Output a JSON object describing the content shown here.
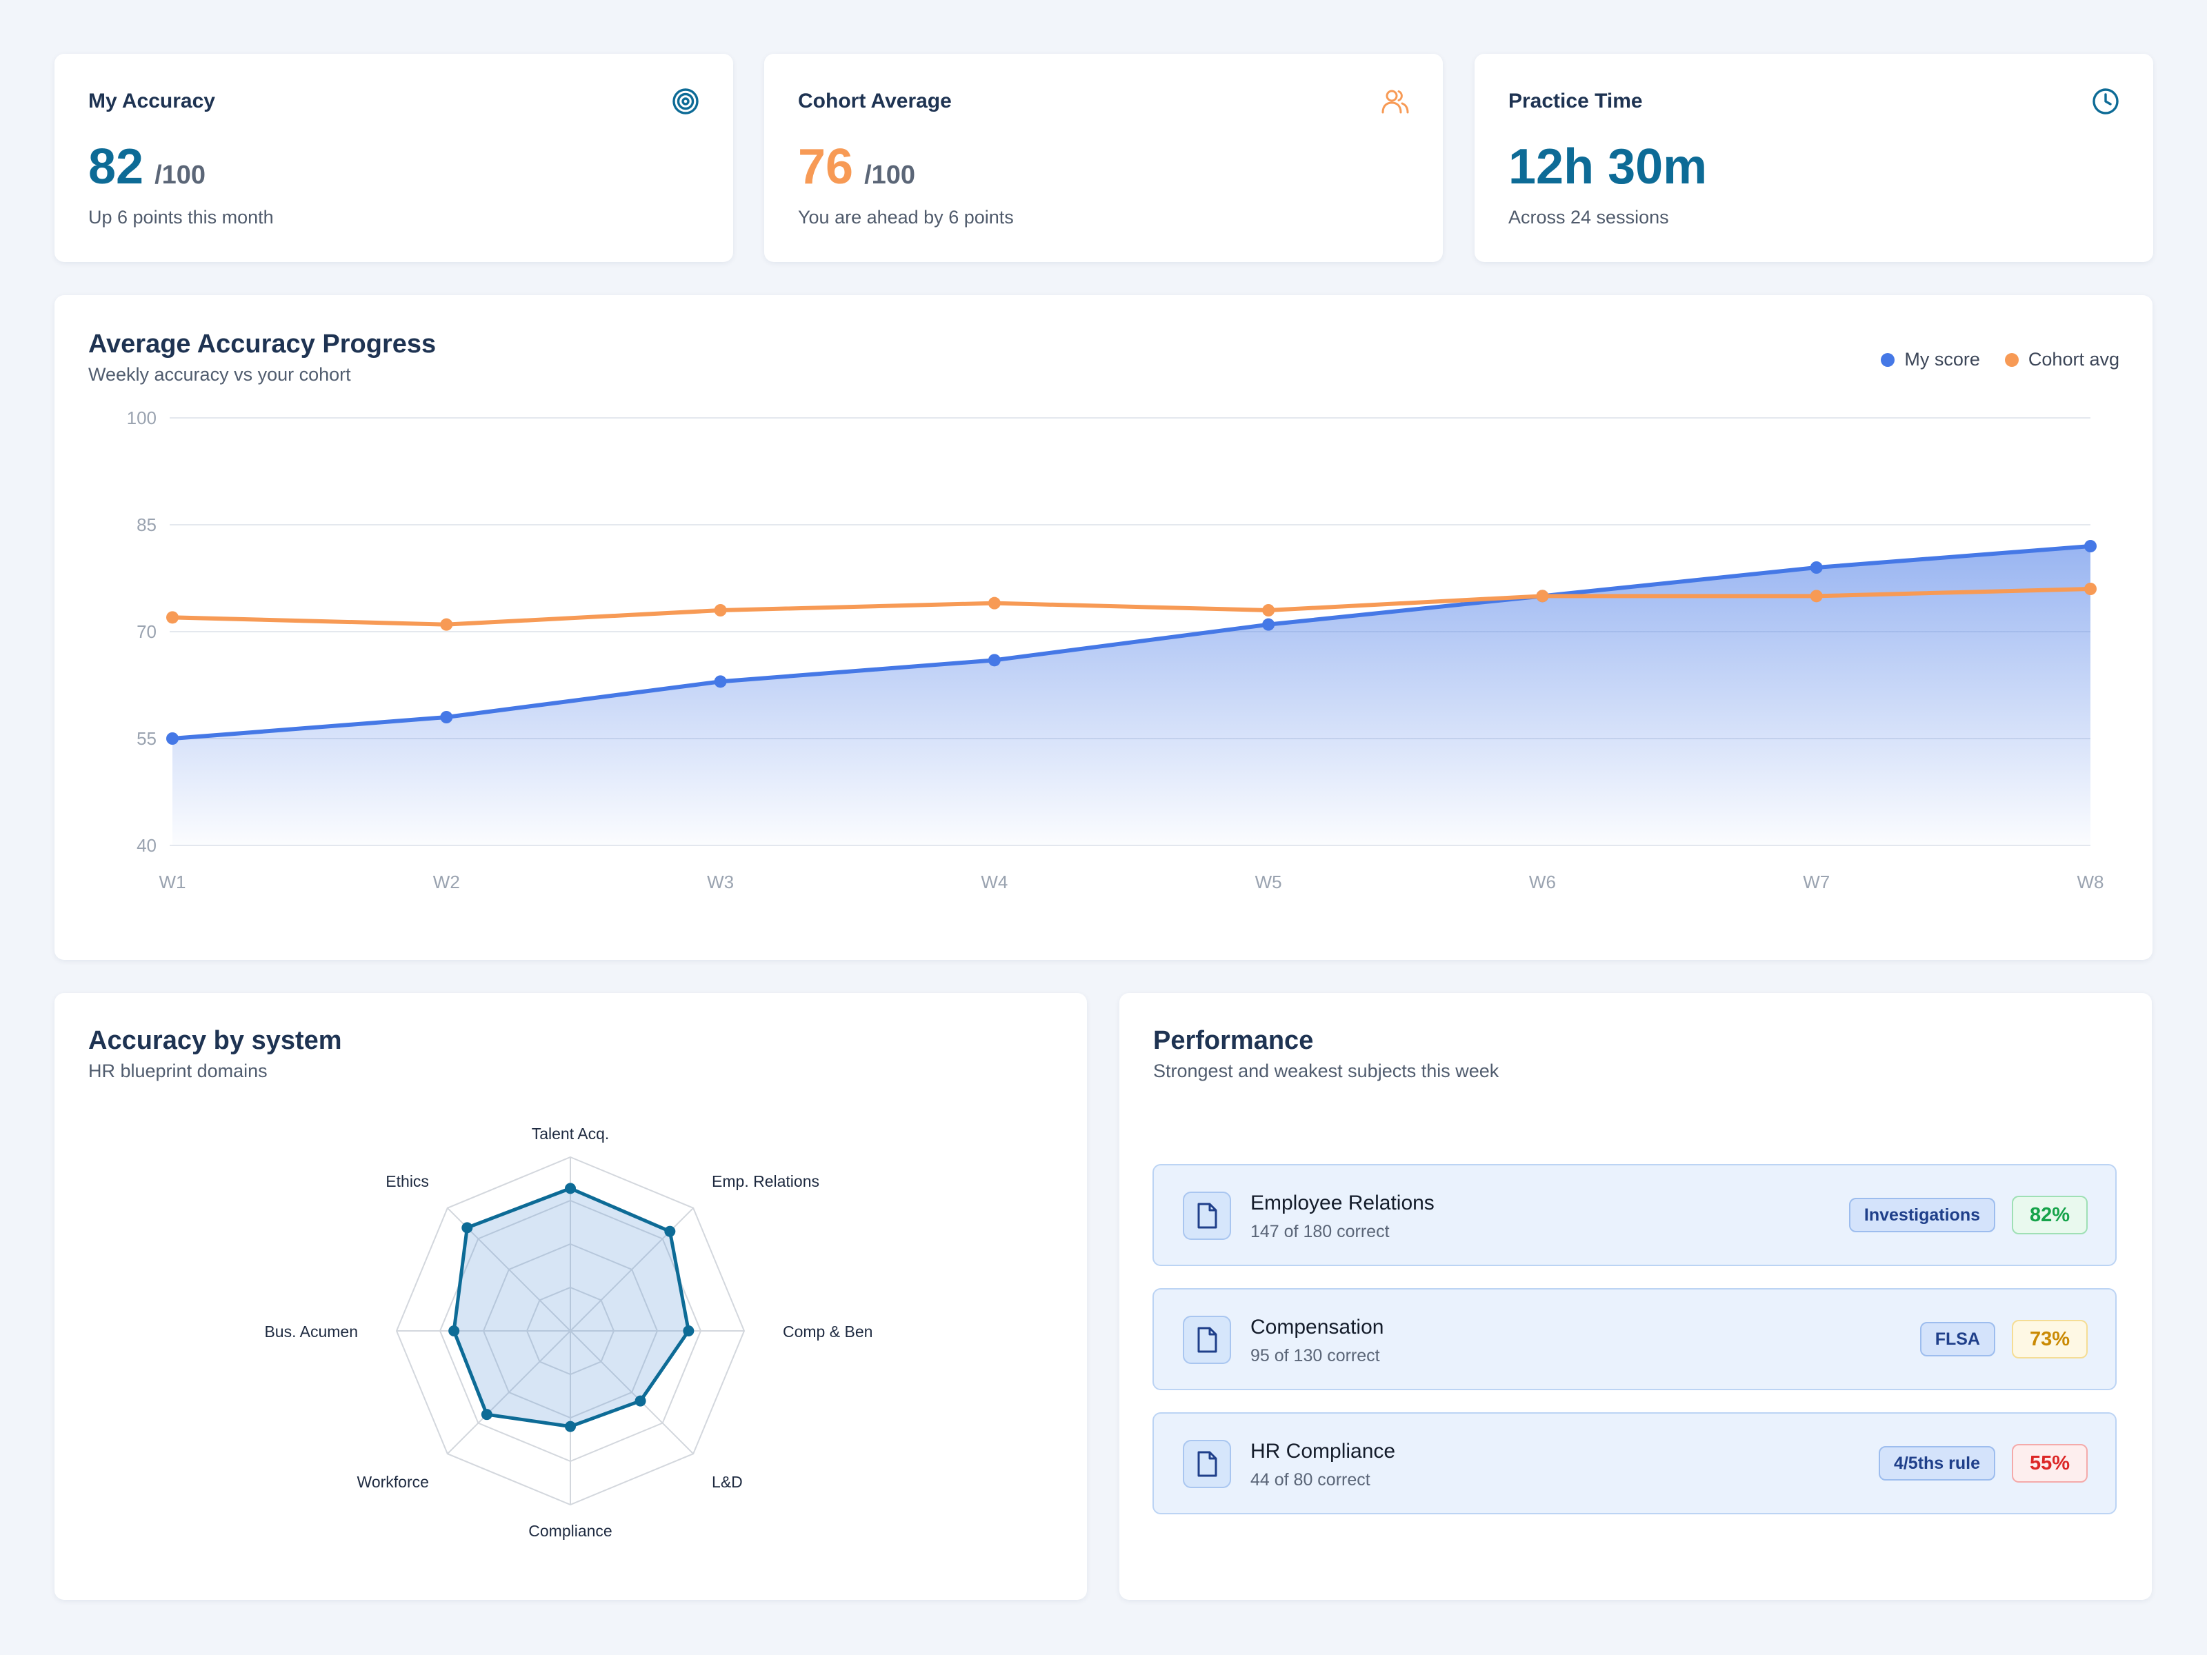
{
  "stats": [
    {
      "title": "My Accuracy",
      "value": "82",
      "unit": "/100",
      "sub": "Up 6 points this month",
      "icon": "target-icon",
      "color": "#0d6b96"
    },
    {
      "title": "Cohort Average",
      "value": "76",
      "unit": "/100",
      "sub": "You are ahead by 6 points",
      "icon": "users-icon",
      "color": "#f79a55"
    },
    {
      "title": "Practice Time",
      "value": "12h 30m",
      "unit": "",
      "sub": "Across 24 sessions",
      "icon": "clock-icon",
      "color": "#0d6b96"
    }
  ],
  "progress": {
    "title": "Average Accuracy Progress",
    "subtitle": "Weekly accuracy vs your cohort",
    "legend": [
      {
        "label": "My score",
        "color": "#4578e6"
      },
      {
        "label": "Cohort avg",
        "color": "#f79a55"
      }
    ]
  },
  "radar": {
    "title": "Accuracy by system",
    "subtitle": "HR blueprint domains"
  },
  "performance": {
    "title": "Performance",
    "subtitle": "Strongest and weakest subjects this week",
    "rows": [
      {
        "name": "Employee Relations",
        "detail": "147 of 180 correct",
        "tag": "Investigations",
        "pct": "82%",
        "pct_color": "#16a34a",
        "pct_bg": "#e9f9ee",
        "pct_border": "#9fe0b5"
      },
      {
        "name": "Compensation",
        "detail": "95 of 130 correct",
        "tag": "FLSA",
        "pct": "73%",
        "pct_color": "#ca8a04",
        "pct_bg": "#fef8e4",
        "pct_border": "#f5dd95"
      },
      {
        "name": "HR Compliance",
        "detail": "44 of 80 correct",
        "tag": "4/5ths rule",
        "pct": "55%",
        "pct_color": "#dc2626",
        "pct_bg": "#fdeeee",
        "pct_border": "#f4aaaa"
      }
    ]
  },
  "chart_data": [
    {
      "type": "area",
      "categories": [
        "W1",
        "W2",
        "W3",
        "W4",
        "W5",
        "W6",
        "W7",
        "W8"
      ],
      "series": [
        {
          "name": "My score",
          "values": [
            55,
            58,
            63,
            66,
            71,
            75,
            79,
            82
          ],
          "color": "#4578e6",
          "fill": true
        },
        {
          "name": "Cohort avg",
          "values": [
            72,
            71,
            73,
            74,
            73,
            75,
            75,
            76
          ],
          "color": "#f79a55",
          "fill": false
        }
      ],
      "yticks": [
        40,
        55,
        70,
        85,
        100
      ],
      "ylim": [
        40,
        100
      ],
      "grid": true,
      "legend": "top-right"
    },
    {
      "type": "radar",
      "categories": [
        "Talent Acq.",
        "Emp. Relations",
        "Comp & Ben",
        "L&D",
        "Compliance",
        "Workforce",
        "Bus. Acumen",
        "Ethics"
      ],
      "values": [
        82,
        81,
        68,
        57,
        55,
        68,
        67,
        84
      ],
      "max": 100,
      "rings": 4,
      "color": "#0d6b96"
    }
  ]
}
